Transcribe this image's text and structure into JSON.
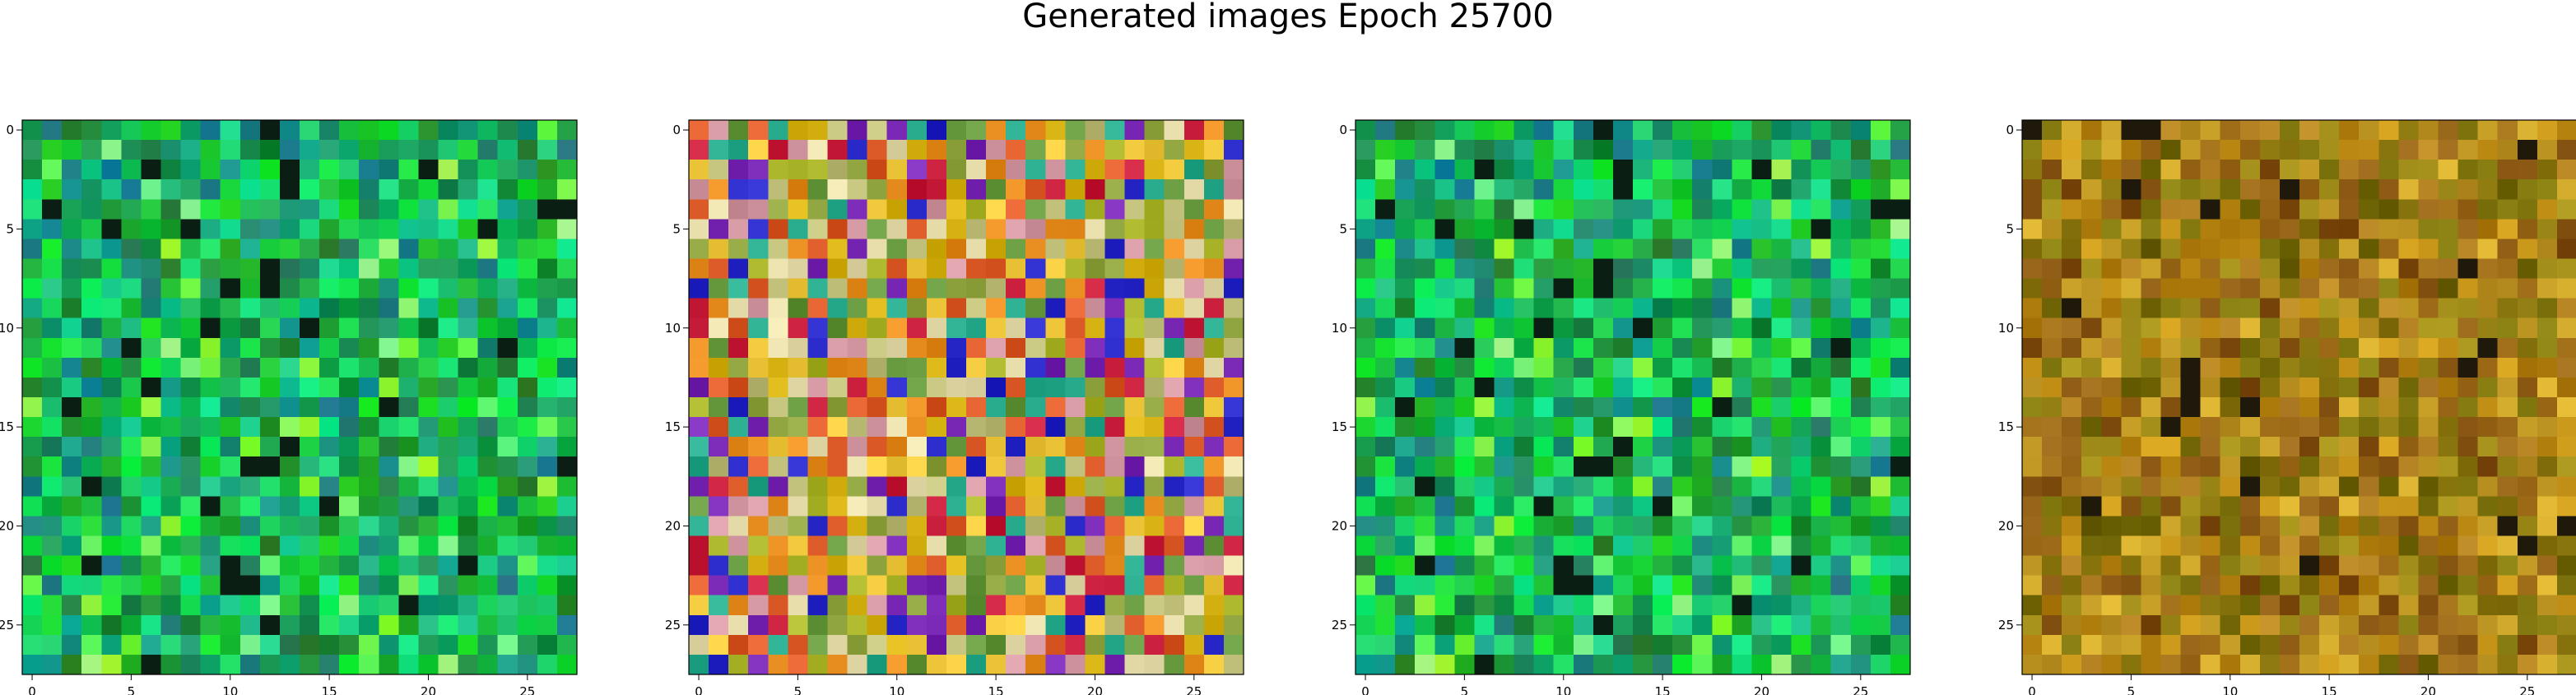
{
  "figure": {
    "title": "Generated images Epoch 25700"
  },
  "chart_data": [
    {
      "type": "heatmap",
      "description": "generated image 1",
      "palette": "green",
      "x_ticks": [
        "0",
        "5",
        "10",
        "15",
        "20",
        "25"
      ],
      "y_ticks": [
        "0",
        "5",
        "10",
        "15",
        "20",
        "25"
      ],
      "xlim": [
        -0.5,
        27.5
      ],
      "ylim": [
        27.5,
        -0.5
      ],
      "grid": false,
      "seed": 11
    },
    {
      "type": "heatmap",
      "description": "generated image 2",
      "palette": "multicolor",
      "x_ticks": [
        "0",
        "5",
        "10",
        "15",
        "20",
        "25"
      ],
      "y_ticks": [
        "0",
        "5",
        "10",
        "15",
        "20",
        "25"
      ],
      "xlim": [
        -0.5,
        27.5
      ],
      "ylim": [
        27.5,
        -0.5
      ],
      "grid": false,
      "seed": 29
    },
    {
      "type": "heatmap",
      "description": "generated image 3",
      "palette": "green",
      "x_ticks": [
        "0",
        "5",
        "10",
        "15",
        "20",
        "25"
      ],
      "y_ticks": [
        "0",
        "5",
        "10",
        "15",
        "20",
        "25"
      ],
      "xlim": [
        -0.5,
        27.5
      ],
      "ylim": [
        27.5,
        -0.5
      ],
      "grid": false,
      "seed": 11
    },
    {
      "type": "heatmap",
      "description": "generated image 4",
      "palette": "olive",
      "x_ticks": [
        "0",
        "5",
        "10",
        "15",
        "20",
        "25"
      ],
      "y_ticks": [
        "0",
        "5",
        "10",
        "15",
        "20",
        "25"
      ],
      "xlim": [
        -0.5,
        27.5
      ],
      "ylim": [
        27.5,
        -0.5
      ],
      "grid": false,
      "seed": 47
    }
  ]
}
